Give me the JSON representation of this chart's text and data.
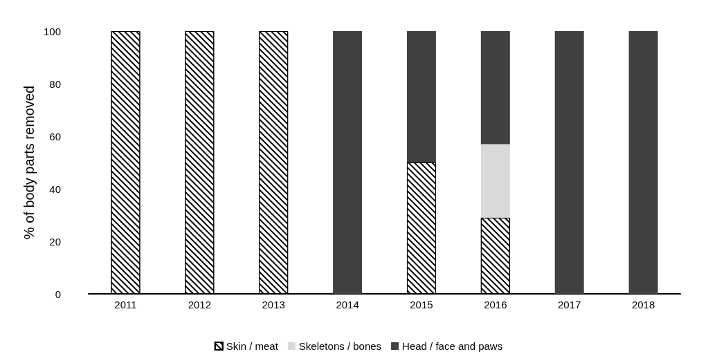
{
  "chart_data": {
    "type": "bar",
    "stacked": true,
    "ylabel": "% of body parts removed",
    "categories": [
      "2011",
      "2012",
      "2013",
      "2014",
      "2015",
      "2016",
      "2017",
      "2018"
    ],
    "series": [
      {
        "name": "Skin / meat",
        "color": "#ffffff",
        "values": [
          100,
          100,
          100,
          0,
          50,
          29,
          0,
          0
        ]
      },
      {
        "name": "Skeletons / bones",
        "color": "#d9d9d9",
        "values": [
          0,
          0,
          0,
          0,
          0,
          28,
          0,
          0
        ]
      },
      {
        "name": "Head / face and paws",
        "color": "#404040",
        "values": [
          0,
          0,
          0,
          100,
          50,
          43,
          100,
          100
        ]
      }
    ],
    "ylim": [
      0,
      100
    ],
    "yticks": [
      0,
      20,
      40,
      60,
      80,
      100
    ],
    "grid": false,
    "legend": "bottom"
  }
}
